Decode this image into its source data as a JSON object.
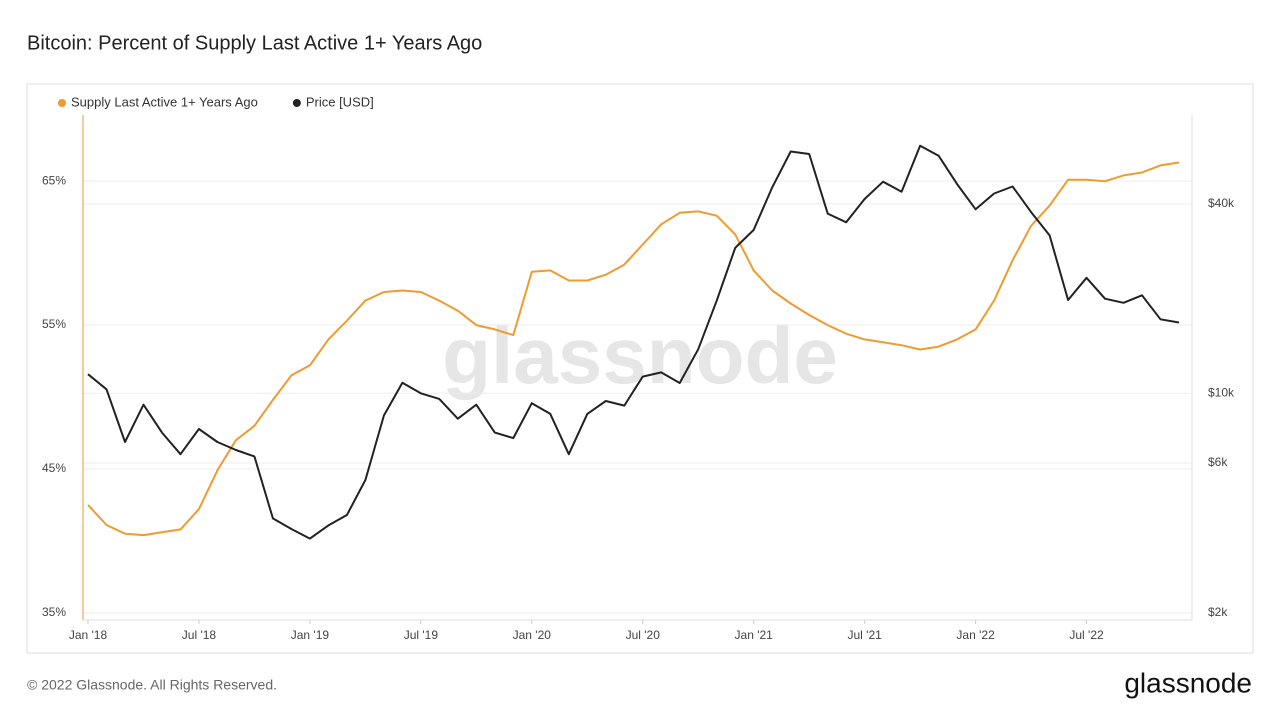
{
  "chart_data": {
    "type": "line",
    "title": "Bitcoin: Percent of Supply Last Active 1+ Years Ago",
    "x": [
      "2018-01",
      "2018-02",
      "2018-03",
      "2018-04",
      "2018-05",
      "2018-06",
      "2018-07",
      "2018-08",
      "2018-09",
      "2018-10",
      "2018-11",
      "2018-12",
      "2019-01",
      "2019-02",
      "2019-03",
      "2019-04",
      "2019-05",
      "2019-06",
      "2019-07",
      "2019-08",
      "2019-09",
      "2019-10",
      "2019-11",
      "2019-12",
      "2020-01",
      "2020-02",
      "2020-03",
      "2020-04",
      "2020-05",
      "2020-06",
      "2020-07",
      "2020-08",
      "2020-09",
      "2020-10",
      "2020-11",
      "2020-12",
      "2021-01",
      "2021-02",
      "2021-03",
      "2021-04",
      "2021-05",
      "2021-06",
      "2021-07",
      "2021-08",
      "2021-09",
      "2021-10",
      "2021-11",
      "2021-12",
      "2022-01",
      "2022-02",
      "2022-03",
      "2022-04",
      "2022-05",
      "2022-06",
      "2022-07",
      "2022-08",
      "2022-09",
      "2022-10",
      "2022-11",
      "2022-12"
    ],
    "series": [
      {
        "name": "Supply Last Active 1+ Years Ago",
        "color": "#f09a30",
        "axis": "y",
        "values": [
          42.5,
          41.1,
          40.5,
          40.4,
          40.6,
          40.8,
          42.2,
          44.9,
          47,
          48,
          49.8,
          51.5,
          52.2,
          54,
          55.3,
          56.7,
          57.3,
          57.4,
          57.3,
          56.7,
          56,
          55,
          54.7,
          54.3,
          58.7,
          58.8,
          58.1,
          58.1,
          58.5,
          59.2,
          60.6,
          62,
          62.8,
          62.9,
          62.6,
          61.3,
          58.8,
          57.4,
          56.5,
          55.7,
          55,
          54.4,
          54,
          53.8,
          53.6,
          53.3,
          53.5,
          54,
          54.7,
          56.7,
          59.5,
          61.9,
          63.3,
          65.1,
          65.1,
          65,
          65.4,
          65.6,
          66.1,
          66.3
        ]
      },
      {
        "name": "Price [USD]",
        "color": "#222222",
        "axis": "y2",
        "values": [
          11500,
          10300,
          7000,
          9200,
          7500,
          6400,
          7700,
          7000,
          6600,
          6300,
          4000,
          3700,
          3450,
          3800,
          4100,
          5300,
          8500,
          10800,
          10000,
          9600,
          8300,
          9200,
          7500,
          7200,
          9300,
          8600,
          6400,
          8600,
          9450,
          9140,
          11300,
          11650,
          10780,
          13800,
          19700,
          29000,
          33100,
          45200,
          58800,
          57700,
          37300,
          35000,
          41500,
          47100,
          43800,
          61300,
          57000,
          46300,
          38500,
          43200,
          45500,
          37700,
          31800,
          19800,
          23300,
          20000,
          19400,
          20500,
          17200,
          16800
        ]
      }
    ],
    "xlim": [
      "2018-01",
      "2022-12"
    ],
    "xticks": [
      {
        "value": "2018-01",
        "label": "Jan '18"
      },
      {
        "value": "2018-07",
        "label": "Jul '18"
      },
      {
        "value": "2019-01",
        "label": "Jan '19"
      },
      {
        "value": "2019-07",
        "label": "Jul '19"
      },
      {
        "value": "2020-01",
        "label": "Jan '20"
      },
      {
        "value": "2020-07",
        "label": "Jul '20"
      },
      {
        "value": "2021-01",
        "label": "Jan '21"
      },
      {
        "value": "2021-07",
        "label": "Jul '21"
      },
      {
        "value": "2022-01",
        "label": "Jan '22"
      },
      {
        "value": "2022-07",
        "label": "Jul '22"
      }
    ],
    "ylim": [
      34.5,
      69.6
    ],
    "yticks": [
      {
        "value": 35,
        "label": "35%"
      },
      {
        "value": 45,
        "label": "45%"
      },
      {
        "value": 55,
        "label": "55%"
      },
      {
        "value": 65,
        "label": "65%"
      }
    ],
    "y2lim": [
      1900,
      76800
    ],
    "y2scale": "log",
    "y2ticks": [
      {
        "value": 2000,
        "label": "$2k"
      },
      {
        "value": 6000,
        "label": "$6k"
      },
      {
        "value": 10000,
        "label": "$10k"
      },
      {
        "value": 40000,
        "label": "$40k"
      }
    ],
    "grid": true,
    "legend": "top-left"
  },
  "watermark": "glassnode",
  "footer": {
    "copyright": "© 2022 Glassnode. All Rights Reserved.",
    "logo": "glassnode"
  }
}
